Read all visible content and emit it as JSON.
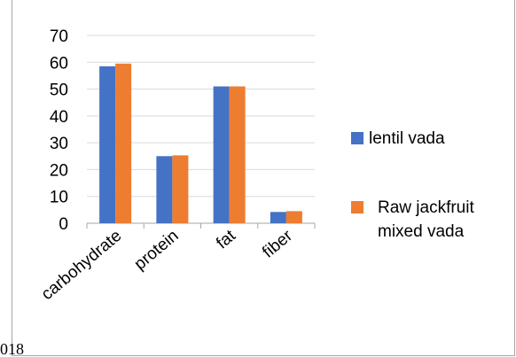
{
  "chart_data": {
    "type": "bar",
    "title": "",
    "xlabel": "",
    "ylabel": "",
    "categories": [
      "carbohydrate",
      "protein",
      "fat",
      "fiber"
    ],
    "series": [
      {
        "name": "lentil vada",
        "values": [
          58.5,
          25,
          51,
          4.2
        ]
      },
      {
        "name": "Raw jackfruit mixed vada",
        "values": [
          59.5,
          25.3,
          51,
          4.5
        ]
      }
    ],
    "ylim": [
      0,
      70
    ],
    "yticks": [
      0,
      10,
      20,
      30,
      40,
      50,
      60,
      70
    ],
    "grid": true,
    "legend_position": "right"
  },
  "colors": {
    "series": [
      "#4472c4",
      "#ed7d31"
    ],
    "grid": "#d9d9d9",
    "axis": "#a6a6a6"
  },
  "legend_lines": [
    [
      "lentil vada"
    ],
    [
      "Raw jackfruit",
      "mixed vada"
    ]
  ],
  "page_fragment": "018"
}
